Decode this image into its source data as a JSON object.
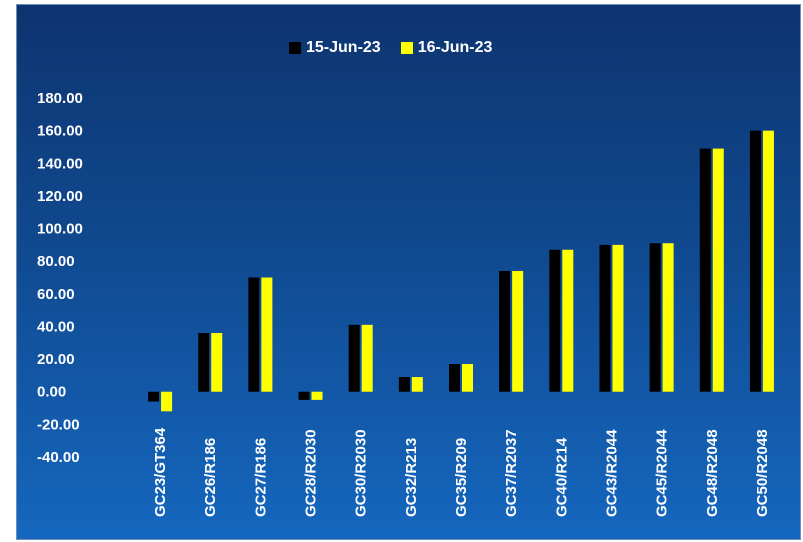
{
  "chart_data": {
    "type": "bar",
    "categories": [
      "GC23/GT364",
      "GC26/R186",
      "GC27/R186",
      "GC28/R2030",
      "GC30/R2030",
      "GC32/R213",
      "GC35/R209",
      "GC37/R2037",
      "GC40/R214",
      "GC43/R2044",
      "GC45/R2044",
      "GC48/R2048",
      "GC50/R2048"
    ],
    "series": [
      {
        "name": "15-Jun-23",
        "color": "#000000",
        "values": [
          -6,
          36,
          70,
          -5,
          41,
          9,
          17,
          74,
          87,
          90,
          91,
          149,
          160
        ]
      },
      {
        "name": "16-Jun-23",
        "color": "#ffff00",
        "values": [
          -12,
          36,
          70,
          -5,
          41,
          9,
          17,
          74,
          87,
          90,
          91,
          149,
          160
        ]
      }
    ],
    "yticks": [
      "180.00",
      "160.00",
      "140.00",
      "120.00",
      "100.00",
      "80.00",
      "60.00",
      "40.00",
      "20.00",
      "0.00",
      "-20.00",
      "-40.00"
    ],
    "ylim": [
      -40,
      180
    ],
    "legend_position": "top-center",
    "grid": false
  }
}
